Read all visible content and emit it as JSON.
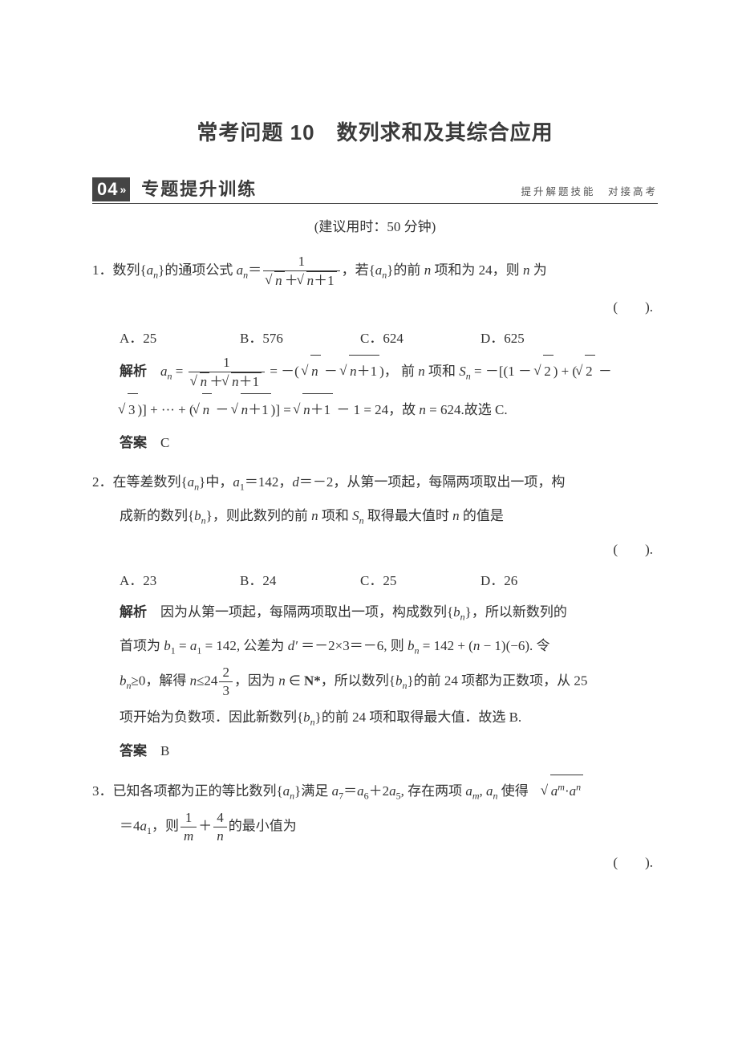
{
  "title": "常考问题 10　数列求和及其综合应用",
  "section": {
    "badge": "04",
    "badge_arrow": "»",
    "title": "专题提升训练",
    "subtitle": "提升解题技能　对接高考"
  },
  "time_hint": "(建议用时：50 分钟)",
  "q1": {
    "num": "1．",
    "stem_a": "数列{",
    "an": "a",
    "ansub": "n",
    "stem_b": "}的通项公式 ",
    "eq_l": "a",
    "eq_lsub": "n",
    "eq_mid": "＝",
    "frac_num": "1",
    "frac_den_a": "n",
    "frac_den_plus": "＋",
    "frac_den_b": "n＋1",
    "stem_c": "，若{",
    "stem_d": "}的前 ",
    "nvar": "n",
    "stem_e": " 项和为 24，则 ",
    "stem_f": " 为",
    "paren": "(　　).",
    "choices": {
      "A": "A．25",
      "B": "B．576",
      "C": "C．624",
      "D": "D．625"
    },
    "explain_label": "解析",
    "exp_eq1_l": "a",
    "exp_eq1_lsub": "n",
    "exp_mid1": " = ",
    "exp_mid2": " = －( ",
    "exp_r1": " － ",
    "exp_r2": ")， 前 ",
    "exp_r3": " 项和 ",
    "Sn_l": "S",
    "Sn_sub": "n",
    "exp_r4": " = －[(1 － ",
    "sqrt2": "2",
    "exp_r5": ") + (",
    "exp_r6": " － ",
    "sqrt3": "3",
    "exp_line2a": ")] + ··· + (",
    "exp_line2b": " － ",
    "exp_line2c": ")] = ",
    "exp_line2d": " － 1 = 24，故 ",
    "exp_line2e": " = 624.故选 C.",
    "answer_label": "答案",
    "answer": "C"
  },
  "q2": {
    "num": "2．",
    "stem_a": "在等差数列{",
    "stem_b": "}中，",
    "a1": "a",
    "a1sub": "1",
    "a1val": "＝142，",
    "dvar": "d",
    "dval": "＝－2，从第一项起，每隔两项取出一项，构",
    "line2a": "成新的数列{",
    "bn": "b",
    "bnsub": "n",
    "line2b": "}，则此数列的前 ",
    "line2c": " 项和 ",
    "line2d": " 取得最大值时 ",
    "line2e": " 的值是",
    "paren": "(　　).",
    "choices": {
      "A": "A．23",
      "B": "B．24",
      "C": "C．25",
      "D": "D．26"
    },
    "explain_label": "解析",
    "exp1": "　因为从第一项起，每隔两项取出一项，构成数列{",
    "exp1b": "}，所以新数列的",
    "exp2a": "首项为 ",
    "b1": "b",
    "b1sub": "1",
    "exp2b": " = ",
    "exp2c": " = 142, 公差为 ",
    "dprime": "d′",
    "exp2d": " ＝－2×3＝－6, 则 ",
    "exp2e": " = 142 + (",
    "exp2f": " − 1)(−6). 令",
    "exp3a": "≥0，解得 ",
    "exp3b": "≤24",
    "frac23_num": "2",
    "frac23_den": "3",
    "exp3c": "，因为 ",
    "Nstar": "N*",
    "exp3d": "，所以数列{",
    "exp3e": "}的前 24 项都为正数项，从 25",
    "exp4a": "项开始为负数项．因此新数列{",
    "exp4b": "}的前 24 项和取得最大值．故选 B.",
    "answer_label": "答案",
    "answer": "B"
  },
  "q3": {
    "num": "3．",
    "stem_a": "已知各项都为正的等比数列{",
    "stem_b": "}满足 ",
    "a7": "a",
    "a7sub": "7",
    "eq1": "＝",
    "a6": "a",
    "a6sub": "6",
    "plus": "＋2",
    "a5": "a",
    "a5sub": "5",
    "stem_c": ", 存在两项 ",
    "am": "a",
    "amsub": "m",
    "comma": ", ",
    "ann": "a",
    "annsub": "n",
    "stem_d": " 使得",
    "sqrt_amn_a": "a",
    "sqrt_amn_m": "m",
    "sqrt_amn_dot": "·",
    "sqrt_amn_n": "n",
    "line2a": "＝4",
    "a1": "a",
    "a1sub": "1",
    "line2b": "，则",
    "frac1_num": "1",
    "frac1_den": "m",
    "plus2": "＋",
    "frac4_num": "4",
    "frac4_den": "n",
    "line2c": "的最小值为",
    "paren": "(　　)."
  }
}
